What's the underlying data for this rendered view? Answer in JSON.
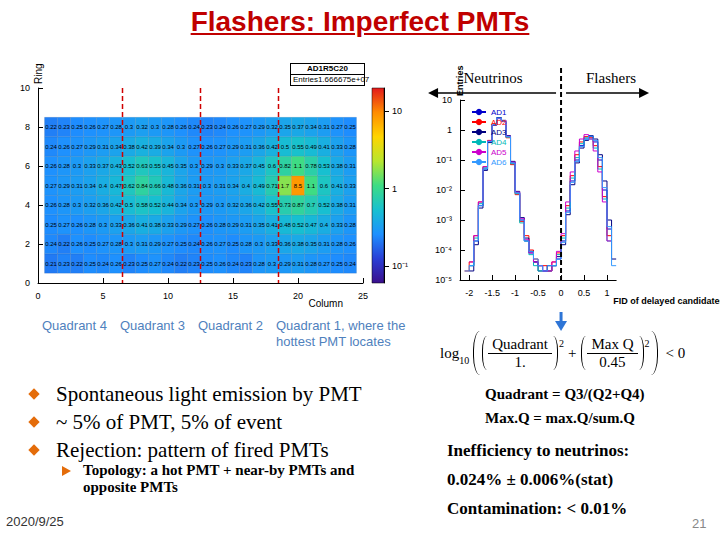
{
  "slide": {
    "title": "Flashers: Imperfect PMTs",
    "bullets": [
      "Spontaneous light emission by PMT",
      "~ 5% of PMT, 5% of event",
      "Rejection: pattern of fired PMTs"
    ],
    "sub_bullet": "Topology: a hot PMT + near-by PMTs and opposite PMTs",
    "formula": {
      "function": "log",
      "base": "10",
      "terms": [
        {
          "numerator": "Quadrant",
          "denominator": "1."
        },
        {
          "numerator": "Max Q",
          "denominator": "0.45"
        }
      ],
      "exponent": "2",
      "operator": "+",
      "relation": "< 0"
    },
    "definitions": [
      "Quadrant = Q3/(Q2+Q4)",
      "Max.Q = max.Q/sum.Q"
    ],
    "results": [
      "Inefficiency to neutrinos:",
      "0.024% ± 0.006%(stat)",
      "Contamination: < 0.01%"
    ],
    "date": "2020/9/25",
    "page": "21"
  },
  "chart_data": [
    {
      "type": "heatmap",
      "title": "AD1R5C20",
      "stats": [
        [
          "Entries",
          "1.666675e+07"
        ]
      ],
      "x_label": "Column",
      "y_label": "Ring",
      "columns": [
        1,
        2,
        3,
        4,
        5,
        6,
        7,
        8,
        9,
        10,
        11,
        12,
        13,
        14,
        15,
        16,
        17,
        18,
        19,
        20,
        21,
        22,
        23,
        24
      ],
      "rings": [
        1,
        2,
        3,
        4,
        5,
        6,
        7,
        8
      ],
      "cells": [
        [
          0.21,
          0.23,
          0.22,
          0.25,
          0.24,
          0.26,
          0.23,
          0.25,
          0.27,
          0.24,
          0.22,
          0.23,
          0.25,
          0.26,
          0.24,
          0.23,
          0.28,
          0.3,
          0.29,
          0.31,
          0.28,
          0.27,
          0.25,
          0.24
        ],
        [
          0.24,
          0.22,
          0.26,
          0.25,
          0.27,
          0.28,
          0.3,
          0.31,
          0.29,
          0.27,
          0.25,
          0.24,
          0.26,
          0.27,
          0.25,
          0.28,
          0.3,
          0.33,
          0.36,
          0.38,
          0.35,
          0.31,
          0.28,
          0.26
        ],
        [
          0.25,
          0.27,
          0.26,
          0.28,
          0.3,
          0.33,
          0.36,
          0.41,
          0.38,
          0.33,
          0.29,
          0.27,
          0.26,
          0.28,
          0.29,
          0.31,
          0.35,
          0.41,
          0.48,
          0.52,
          0.47,
          0.4,
          0.33,
          0.28
        ],
        [
          0.26,
          0.28,
          0.3,
          0.32,
          0.36,
          0.42,
          0.5,
          0.58,
          0.52,
          0.44,
          0.34,
          0.3,
          0.29,
          0.3,
          0.32,
          0.36,
          0.42,
          0.55,
          0.73,
          0.87,
          0.7,
          0.52,
          0.38,
          0.31
        ],
        [
          0.27,
          0.29,
          0.31,
          0.34,
          0.4,
          0.47,
          0.62,
          0.84,
          0.66,
          0.48,
          0.36,
          0.31,
          0.3,
          0.31,
          0.34,
          0.4,
          0.49,
          0.71,
          1.7,
          8.5,
          1.1,
          0.6,
          0.41,
          0.33
        ],
        [
          0.26,
          0.28,
          0.3,
          0.33,
          0.37,
          0.43,
          0.52,
          0.63,
          0.55,
          0.45,
          0.35,
          0.3,
          0.29,
          0.3,
          0.33,
          0.37,
          0.45,
          0.6,
          0.82,
          1.1,
          0.78,
          0.53,
          0.38,
          0.31
        ],
        [
          0.24,
          0.26,
          0.27,
          0.29,
          0.31,
          0.34,
          0.38,
          0.42,
          0.39,
          0.34,
          0.3,
          0.27,
          0.26,
          0.27,
          0.29,
          0.31,
          0.36,
          0.42,
          0.5,
          0.55,
          0.49,
          0.41,
          0.33,
          0.28
        ],
        [
          0.22,
          0.23,
          0.25,
          0.26,
          0.27,
          0.28,
          0.3,
          0.32,
          0.3,
          0.28,
          0.26,
          0.24,
          0.23,
          0.24,
          0.26,
          0.27,
          0.29,
          0.32,
          0.35,
          0.37,
          0.34,
          0.31,
          0.27,
          0.25
        ]
      ],
      "data_labels": true,
      "xlim": [
        0,
        25
      ],
      "xticks": [
        0,
        5,
        10,
        15,
        20,
        25
      ],
      "ylim": [
        0,
        10
      ],
      "yticks": [
        0,
        2,
        4,
        6,
        8,
        10
      ],
      "colorbar": {
        "range": [
          0.06,
          20
        ],
        "ticks": [
          {
            "value": 0.1,
            "label": "10⁻¹"
          },
          1,
          10
        ]
      },
      "quadrant_boundaries": [
        6.5,
        12.5,
        18.5
      ],
      "annotations": [
        "Quadrant 4",
        "Quadrant 3",
        "Quadrant 2",
        "Quadrant 1, where the hottest PMT locates"
      ],
      "grid": false
    },
    {
      "type": "histogram",
      "x_label": "FID of delayed candidates",
      "y_label": "Entries",
      "log": "y",
      "bins": [
        -2.2,
        -2.1,
        -2,
        -1.9,
        -1.8,
        -1.7,
        -1.6,
        -1.5,
        -1.4,
        -1.3,
        -1.2,
        -1.1,
        -1,
        -0.9,
        -0.8,
        -0.7,
        -0.6,
        -0.5,
        -0.4,
        -0.3,
        -0.2,
        -0.1,
        0,
        0.1,
        0.2,
        0.3,
        0.4,
        0.5,
        0.6,
        0.7,
        0.8,
        0.9,
        1,
        1.1,
        1.2
      ],
      "series": [
        {
          "name": "AD1",
          "color": "#0000cc",
          "values": [
            null,
            null,
            3e-05,
            0.0002,
            0.003,
            0.05,
            0.4,
            1.5,
            2.5,
            2,
            0.6,
            0.08,
            0.008,
            0.001,
            0.0002,
            8e-05,
            4e-05,
            3e-05,
            2e-05,
            2e-05,
            3e-05,
            5e-05,
            0.0002,
            0.002,
            0.02,
            0.1,
            0.3,
            0.5,
            0.6,
            0.4,
            0.1,
            0.01,
            0.0005,
            null
          ]
        },
        {
          "name": "AD2",
          "color": "#ff0000",
          "values": [
            null,
            2e-05,
            4e-05,
            0.0003,
            0.004,
            0.06,
            0.45,
            1.6,
            2.4,
            1.9,
            0.55,
            0.07,
            0.007,
            0.0009,
            0.0003,
            0.0001,
            5e-05,
            3e-05,
            3e-05,
            2e-05,
            4e-05,
            8e-05,
            0.0003,
            0.003,
            0.03,
            0.15,
            0.4,
            0.6,
            0.55,
            0.3,
            0.06,
            0.006,
            0.0003,
            null
          ]
        },
        {
          "name": "AD3",
          "color": "#000080",
          "values": [
            null,
            null,
            2e-05,
            0.00015,
            0.0025,
            0.045,
            0.38,
            1.45,
            2.6,
            2.1,
            0.65,
            0.09,
            0.009,
            0.0012,
            0.00025,
            9e-05,
            4e-05,
            2e-05,
            2e-05,
            3e-05,
            3e-05,
            6e-05,
            0.00015,
            0.0015,
            0.015,
            0.08,
            0.25,
            0.45,
            0.65,
            0.5,
            0.15,
            0.02,
            0.001,
            5e-05
          ]
        },
        {
          "name": "AD4",
          "color": "#00b8b8",
          "values": [
            null,
            null,
            3e-05,
            0.00025,
            0.0035,
            0.055,
            0.42,
            1.55,
            2.45,
            1.95,
            0.58,
            0.075,
            0.0075,
            0.0008,
            0.0002,
            7e-05,
            3e-05,
            2e-05,
            null,
            2e-05,
            3e-05,
            7e-05,
            0.00025,
            0.0025,
            0.025,
            0.12,
            0.35,
            0.55,
            0.5,
            0.25,
            0.05,
            0.005,
            0.0002,
            null
          ]
        },
        {
          "name": "AD5",
          "color": "#cc00cc",
          "values": [
            null,
            null,
            4e-05,
            0.0003,
            0.004,
            0.06,
            0.43,
            1.5,
            2.4,
            2,
            0.62,
            0.085,
            0.0085,
            0.0011,
            0.00022,
            8e-05,
            4e-05,
            3e-05,
            2e-05,
            2e-05,
            4e-05,
            9e-05,
            0.00035,
            0.004,
            0.04,
            0.2,
            0.5,
            0.7,
            0.5,
            0.2,
            0.04,
            0.004,
            0.0002,
            null
          ]
        },
        {
          "name": "AD6",
          "color": "#3399ff",
          "values": [
            null,
            2e-05,
            3e-05,
            0.0002,
            0.003,
            0.05,
            0.41,
            1.52,
            2.5,
            2.05,
            0.6,
            0.08,
            0.008,
            0.001,
            0.0002,
            9e-05,
            5e-05,
            3e-05,
            2e-05,
            3e-05,
            3e-05,
            5e-05,
            0.00018,
            0.0018,
            0.018,
            0.09,
            0.28,
            0.48,
            0.62,
            0.45,
            0.12,
            0.012,
            0.0006,
            3e-05
          ]
        }
      ],
      "xlim": [
        -2.2,
        1.2
      ],
      "xticks": [
        -2,
        -1.5,
        -1,
        -0.5,
        0,
        0.5,
        1
      ],
      "ylim": [
        1e-05,
        10
      ],
      "yticks": [
        {
          "value": 1e-05,
          "label": "10⁻⁵"
        },
        {
          "value": 0.0001,
          "label": "10⁻⁴"
        },
        {
          "value": 0.001,
          "label": "10⁻³"
        },
        {
          "value": 0.01,
          "label": "10⁻²"
        },
        {
          "value": 0.1,
          "label": "10⁻¹"
        },
        1,
        10
      ],
      "cut": 0,
      "region_labels": [
        "Neutrinos",
        "Flashers"
      ],
      "legend": "upper left",
      "grid": false
    }
  ]
}
